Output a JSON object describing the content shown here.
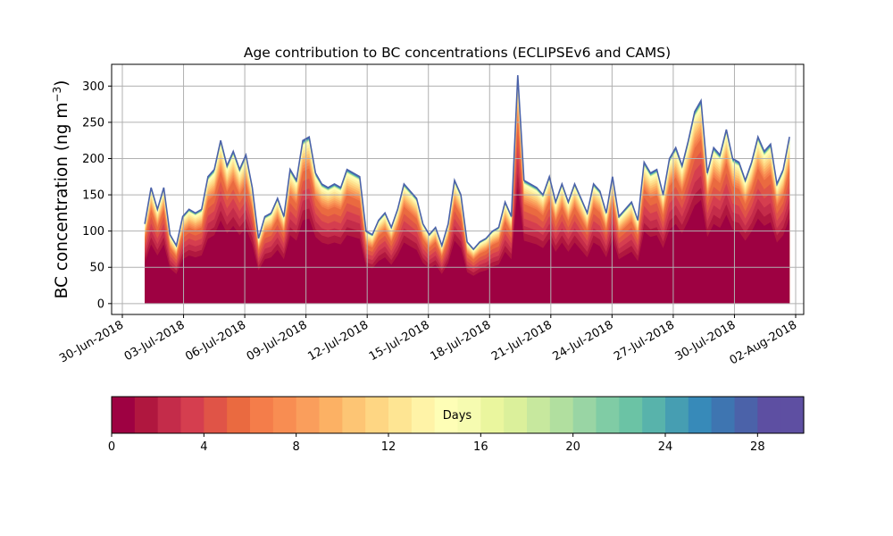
{
  "chart_data": {
    "type": "area",
    "title": "Age contribution to BC concentrations (ECLIPSEv6 and CAMS)",
    "xlabel": "",
    "ylabel_main": "BC concentration (ng m",
    "ylabel_sup": "−3",
    "ylabel_close": ")",
    "ylim": [
      -15,
      330
    ],
    "yticks": [
      0,
      50,
      100,
      150,
      200,
      250,
      300
    ],
    "x_tick_labels": [
      "30-Jun-2018",
      "03-Jul-2018",
      "06-Jul-2018",
      "09-Jul-2018",
      "12-Jul-2018",
      "15-Jul-2018",
      "18-Jul-2018",
      "21-Jul-2018",
      "24-Jul-2018",
      "27-Jul-2018",
      "30-Jul-2018",
      "02-Aug-2018"
    ],
    "x_start_date": "2018-07-01",
    "x_end_date": "2018-08-01",
    "grid": true,
    "age_days_max": 30,
    "total_concentration": [
      {
        "date": "2018-07-01",
        "v": 110
      },
      {
        "date": "2018-07-01",
        "v": 160
      },
      {
        "date": "2018-07-01",
        "v": 130
      },
      {
        "date": "2018-07-01",
        "v": 160
      },
      {
        "date": "2018-07-01",
        "v": 95
      },
      {
        "date": "2018-07-02",
        "v": 80
      },
      {
        "date": "2018-07-02",
        "v": 120
      },
      {
        "date": "2018-07-02",
        "v": 130
      },
      {
        "date": "2018-07-02",
        "v": 125
      },
      {
        "date": "2018-07-03",
        "v": 130
      },
      {
        "date": "2018-07-03",
        "v": 175
      },
      {
        "date": "2018-07-03",
        "v": 185
      },
      {
        "date": "2018-07-04",
        "v": 225
      },
      {
        "date": "2018-07-04",
        "v": 190
      },
      {
        "date": "2018-07-04",
        "v": 210
      },
      {
        "date": "2018-07-05",
        "v": 185
      },
      {
        "date": "2018-07-05",
        "v": 205
      },
      {
        "date": "2018-07-05",
        "v": 160
      },
      {
        "date": "2018-07-06",
        "v": 90
      },
      {
        "date": "2018-07-06",
        "v": 120
      },
      {
        "date": "2018-07-06",
        "v": 125
      },
      {
        "date": "2018-07-06",
        "v": 145
      },
      {
        "date": "2018-07-07",
        "v": 120
      },
      {
        "date": "2018-07-07",
        "v": 185
      },
      {
        "date": "2018-07-07",
        "v": 170
      },
      {
        "date": "2018-07-08",
        "v": 225
      },
      {
        "date": "2018-07-08",
        "v": 230
      },
      {
        "date": "2018-07-08",
        "v": 180
      },
      {
        "date": "2018-07-08",
        "v": 165
      },
      {
        "date": "2018-07-09",
        "v": 160
      },
      {
        "date": "2018-07-09",
        "v": 165
      },
      {
        "date": "2018-07-09",
        "v": 160
      },
      {
        "date": "2018-07-10",
        "v": 185
      },
      {
        "date": "2018-07-10",
        "v": 180
      },
      {
        "date": "2018-07-10",
        "v": 175
      },
      {
        "date": "2018-07-11",
        "v": 100
      },
      {
        "date": "2018-07-11",
        "v": 95
      },
      {
        "date": "2018-07-11",
        "v": 115
      },
      {
        "date": "2018-07-12",
        "v": 125
      },
      {
        "date": "2018-07-12",
        "v": 105
      },
      {
        "date": "2018-07-12",
        "v": 130
      },
      {
        "date": "2018-07-13",
        "v": 165
      },
      {
        "date": "2018-07-13",
        "v": 155
      },
      {
        "date": "2018-07-13",
        "v": 145
      },
      {
        "date": "2018-07-14",
        "v": 110
      },
      {
        "date": "2018-07-14",
        "v": 95
      },
      {
        "date": "2018-07-14",
        "v": 105
      },
      {
        "date": "2018-07-14",
        "v": 80
      },
      {
        "date": "2018-07-15",
        "v": 110
      },
      {
        "date": "2018-07-15",
        "v": 170
      },
      {
        "date": "2018-07-15",
        "v": 150
      },
      {
        "date": "2018-07-16",
        "v": 85
      },
      {
        "date": "2018-07-16",
        "v": 75
      },
      {
        "date": "2018-07-16",
        "v": 85
      },
      {
        "date": "2018-07-17",
        "v": 90
      },
      {
        "date": "2018-07-17",
        "v": 100
      },
      {
        "date": "2018-07-17",
        "v": 105
      },
      {
        "date": "2018-07-17",
        "v": 140
      },
      {
        "date": "2018-07-18",
        "v": 120
      },
      {
        "date": "2018-07-18",
        "v": 315
      },
      {
        "date": "2018-07-18",
        "v": 170
      },
      {
        "date": "2018-07-19",
        "v": 165
      },
      {
        "date": "2018-07-19",
        "v": 160
      },
      {
        "date": "2018-07-19",
        "v": 150
      },
      {
        "date": "2018-07-20",
        "v": 175
      },
      {
        "date": "2018-07-20",
        "v": 140
      },
      {
        "date": "2018-07-20",
        "v": 165
      },
      {
        "date": "2018-07-21",
        "v": 140
      },
      {
        "date": "2018-07-21",
        "v": 165
      },
      {
        "date": "2018-07-21",
        "v": 145
      },
      {
        "date": "2018-07-22",
        "v": 125
      },
      {
        "date": "2018-07-22",
        "v": 165
      },
      {
        "date": "2018-07-22",
        "v": 155
      },
      {
        "date": "2018-07-23",
        "v": 125
      },
      {
        "date": "2018-07-23",
        "v": 175
      },
      {
        "date": "2018-07-23",
        "v": 120
      },
      {
        "date": "2018-07-24",
        "v": 130
      },
      {
        "date": "2018-07-24",
        "v": 140
      },
      {
        "date": "2018-07-24",
        "v": 115
      },
      {
        "date": "2018-07-25",
        "v": 195
      },
      {
        "date": "2018-07-25",
        "v": 180
      },
      {
        "date": "2018-07-25",
        "v": 185
      },
      {
        "date": "2018-07-26",
        "v": 150
      },
      {
        "date": "2018-07-26",
        "v": 200
      },
      {
        "date": "2018-07-26",
        "v": 215
      },
      {
        "date": "2018-07-27",
        "v": 190
      },
      {
        "date": "2018-07-27",
        "v": 225
      },
      {
        "date": "2018-07-27",
        "v": 265
      },
      {
        "date": "2018-07-28",
        "v": 280
      },
      {
        "date": "2018-07-28",
        "v": 180
      },
      {
        "date": "2018-07-28",
        "v": 215
      },
      {
        "date": "2018-07-29",
        "v": 205
      },
      {
        "date": "2018-07-29",
        "v": 240
      },
      {
        "date": "2018-07-29",
        "v": 200
      },
      {
        "date": "2018-07-30",
        "v": 195
      },
      {
        "date": "2018-07-30",
        "v": 170
      },
      {
        "date": "2018-07-30",
        "v": 195
      },
      {
        "date": "2018-07-31",
        "v": 230
      },
      {
        "date": "2018-07-31",
        "v": 210
      },
      {
        "date": "2018-07-31",
        "v": 220
      },
      {
        "date": "2018-07-31",
        "v": 165
      },
      {
        "date": "2018-08-01",
        "v": 185
      },
      {
        "date": "2018-08-01",
        "v": 230
      }
    ],
    "colorbar": {
      "label": "Days",
      "ticks": [
        0,
        4,
        8,
        12,
        16,
        20,
        24,
        28
      ],
      "range": [
        0,
        30
      ],
      "colors": [
        "#9e0142",
        "#b0173f",
        "#c42c4a",
        "#d53e4f",
        "#e05447",
        "#ea6a40",
        "#f47d4a",
        "#f88d52",
        "#fa9e5c",
        "#fcb164",
        "#fdc574",
        "#fed683",
        "#fee593",
        "#fff3a7",
        "#fefeb6",
        "#f6fbb0",
        "#eaf69e",
        "#dbf09b",
        "#c7e89e",
        "#b1df9f",
        "#99d5a4",
        "#80cca5",
        "#6bc3a5",
        "#58b3ab",
        "#469eb2",
        "#378ab9",
        "#3e75b1",
        "#4b62a9",
        "#5d4fa2",
        "#5e4fa2"
      ]
    }
  }
}
